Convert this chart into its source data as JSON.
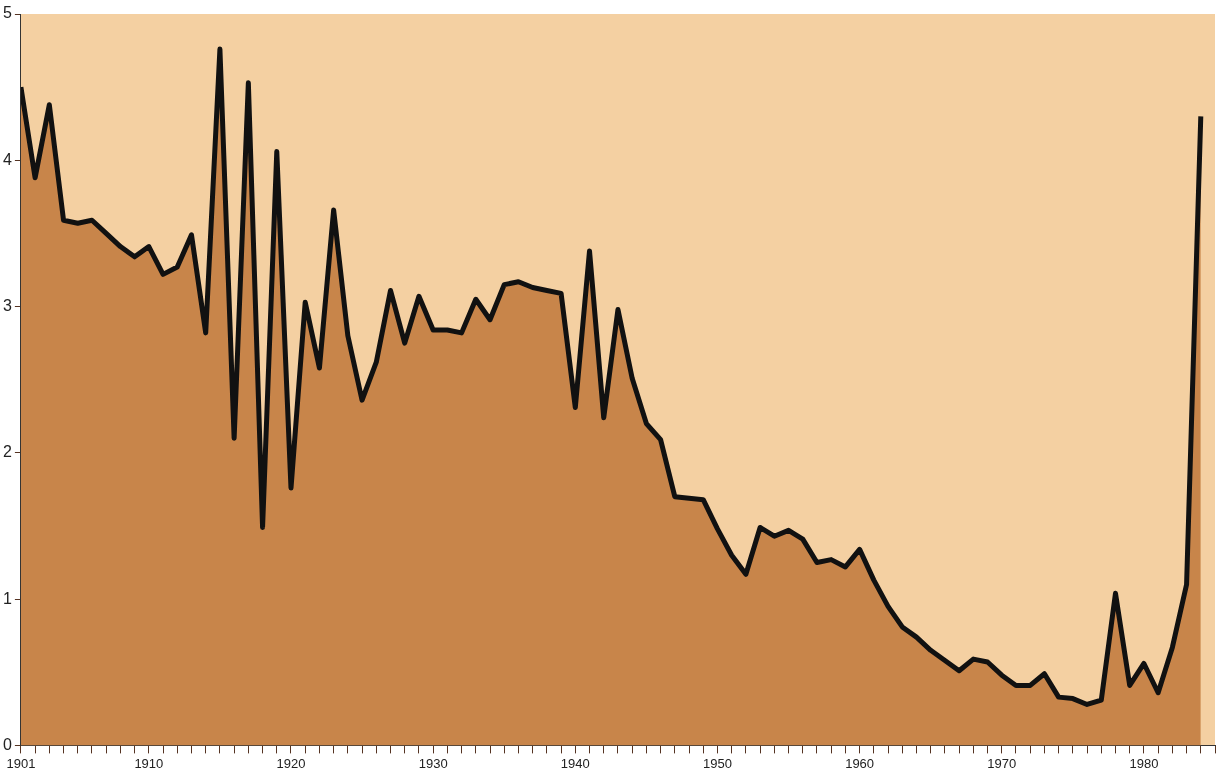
{
  "chart_data": {
    "type": "area",
    "x": [
      1901,
      1902,
      1903,
      1904,
      1905,
      1906,
      1907,
      1908,
      1909,
      1910,
      1911,
      1912,
      1913,
      1914,
      1915,
      1916,
      1917,
      1918,
      1919,
      1920,
      1921,
      1922,
      1923,
      1924,
      1925,
      1926,
      1927,
      1928,
      1929,
      1930,
      1931,
      1932,
      1933,
      1934,
      1935,
      1936,
      1937,
      1938,
      1939,
      1940,
      1941,
      1942,
      1943,
      1944,
      1945,
      1946,
      1947,
      1948,
      1949,
      1950,
      1951,
      1952,
      1953,
      1954,
      1955,
      1956,
      1957,
      1958,
      1959,
      1960,
      1961,
      1962,
      1963,
      1964,
      1965,
      1966,
      1967,
      1968,
      1969,
      1970,
      1971,
      1972,
      1973,
      1974,
      1975,
      1976,
      1977,
      1978,
      1979,
      1980,
      1981,
      1982,
      1983,
      1984
    ],
    "series": [
      {
        "color": "#c8854a",
        "values": [
          4.5,
          3.88,
          4.38,
          3.59,
          3.57,
          3.59,
          3.5,
          3.41,
          3.34,
          3.41,
          3.22,
          3.27,
          3.49,
          2.82,
          4.76,
          2.1,
          4.53,
          1.49,
          4.06,
          1.76,
          3.03,
          2.58,
          3.66,
          2.8,
          2.36,
          2.62,
          3.11,
          2.75,
          3.07,
          2.84,
          2.84,
          2.82,
          3.05,
          2.91,
          3.15,
          3.17,
          3.13,
          3.11,
          3.09,
          2.31,
          3.38,
          2.24,
          2.98,
          2.51,
          2.2,
          2.09,
          1.7,
          1.69,
          1.68,
          1.48,
          1.3,
          1.17,
          1.49,
          1.43,
          1.47,
          1.41,
          1.25,
          1.27,
          1.22,
          1.34,
          1.13,
          0.95,
          0.81,
          0.74,
          0.65,
          0.58,
          0.51,
          0.59,
          0.57,
          0.48,
          0.41,
          0.41,
          0.49,
          0.33,
          0.32,
          0.28,
          0.31,
          1.04,
          0.41,
          0.56,
          0.36,
          0.67,
          1.1,
          4.3
        ]
      }
    ],
    "xlim": [
      1901,
      1985
    ],
    "xticks": [
      {
        "value": 1901,
        "label": "1901"
      },
      {
        "value": 1902,
        "label": null
      },
      {
        "value": 1903,
        "label": null
      },
      {
        "value": 1904,
        "label": null
      },
      {
        "value": 1905,
        "label": null
      },
      {
        "value": 1906,
        "label": null
      },
      {
        "value": 1907,
        "label": null
      },
      {
        "value": 1908,
        "label": null
      },
      {
        "value": 1909,
        "label": null
      },
      1910,
      {
        "value": 1911,
        "label": null
      },
      {
        "value": 1912,
        "label": null
      },
      {
        "value": 1913,
        "label": null
      },
      {
        "value": 1914,
        "label": null
      },
      {
        "value": 1915,
        "label": null
      },
      {
        "value": 1916,
        "label": null
      },
      {
        "value": 1917,
        "label": null
      },
      {
        "value": 1918,
        "label": null
      },
      {
        "value": 1919,
        "label": null
      },
      1920,
      {
        "value": 1921,
        "label": null
      },
      {
        "value": 1922,
        "label": null
      },
      {
        "value": 1923,
        "label": null
      },
      {
        "value": 1924,
        "label": null
      },
      {
        "value": 1925,
        "label": null
      },
      {
        "value": 1926,
        "label": null
      },
      {
        "value": 1927,
        "label": null
      },
      {
        "value": 1928,
        "label": null
      },
      {
        "value": 1929,
        "label": null
      },
      1930,
      {
        "value": 1931,
        "label": null
      },
      {
        "value": 1932,
        "label": null
      },
      {
        "value": 1933,
        "label": null
      },
      {
        "value": 1934,
        "label": null
      },
      {
        "value": 1935,
        "label": null
      },
      {
        "value": 1936,
        "label": null
      },
      {
        "value": 1937,
        "label": null
      },
      {
        "value": 1938,
        "label": null
      },
      {
        "value": 1939,
        "label": null
      },
      1940,
      {
        "value": 1941,
        "label": null
      },
      {
        "value": 1942,
        "label": null
      },
      {
        "value": 1943,
        "label": null
      },
      {
        "value": 1944,
        "label": null
      },
      {
        "value": 1945,
        "label": null
      },
      {
        "value": 1946,
        "label": null
      },
      {
        "value": 1947,
        "label": null
      },
      {
        "value": 1948,
        "label": null
      },
      {
        "value": 1949,
        "label": null
      },
      1950,
      {
        "value": 1951,
        "label": null
      },
      {
        "value": 1952,
        "label": null
      },
      {
        "value": 1953,
        "label": null
      },
      {
        "value": 1954,
        "label": null
      },
      {
        "value": 1955,
        "label": null
      },
      {
        "value": 1956,
        "label": null
      },
      {
        "value": 1957,
        "label": null
      },
      {
        "value": 1958,
        "label": null
      },
      {
        "value": 1959,
        "label": null
      },
      1960,
      {
        "value": 1961,
        "label": null
      },
      {
        "value": 1962,
        "label": null
      },
      {
        "value": 1963,
        "label": null
      },
      {
        "value": 1964,
        "label": null
      },
      {
        "value": 1965,
        "label": null
      },
      {
        "value": 1966,
        "label": null
      },
      {
        "value": 1967,
        "label": null
      },
      {
        "value": 1968,
        "label": null
      },
      {
        "value": 1969,
        "label": null
      },
      1970,
      {
        "value": 1971,
        "label": null
      },
      {
        "value": 1972,
        "label": null
      },
      {
        "value": 1973,
        "label": null
      },
      {
        "value": 1974,
        "label": null
      },
      {
        "value": 1975,
        "label": null
      },
      {
        "value": 1976,
        "label": null
      },
      {
        "value": 1977,
        "label": null
      },
      {
        "value": 1978,
        "label": null
      },
      {
        "value": 1979,
        "label": null
      },
      1980,
      {
        "value": 1981,
        "label": null
      },
      {
        "value": 1982,
        "label": null
      },
      {
        "value": 1983,
        "label": null
      },
      {
        "value": 1984,
        "label": null
      },
      {
        "value": 1985,
        "label": null
      }
    ],
    "ylim": [
      0,
      5
    ],
    "yticks": [
      0,
      1,
      2,
      3,
      4,
      5
    ],
    "grid": false,
    "legend": false
  }
}
